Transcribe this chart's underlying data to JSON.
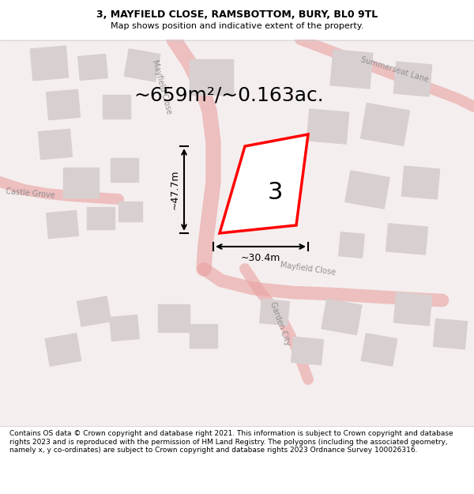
{
  "title_line1": "3, MAYFIELD CLOSE, RAMSBOTTOM, BURY, BL0 9TL",
  "title_line2": "Map shows position and indicative extent of the property.",
  "area_text": "~659m²/~0.163ac.",
  "number_label": "3",
  "width_label": "~30.4m",
  "height_label": "~47.7m",
  "footer_text": "Contains OS data © Crown copyright and database right 2021. This information is subject to Crown copyright and database rights 2023 and is reproduced with the permission of HM Land Registry. The polygons (including the associated geometry, namely x, y co-ordinates) are subject to Crown copyright and database rights 2023 Ordnance Survey 100026316.",
  "bg_color": "#f5f0f0",
  "map_bg": "#f8f4f4",
  "road_color": "#e8a0a0",
  "building_color": "#d8d0d0",
  "property_color": "#ff0000",
  "road_label_color": "#888888",
  "title_bg": "#ffffff",
  "footer_bg": "#ffffff"
}
